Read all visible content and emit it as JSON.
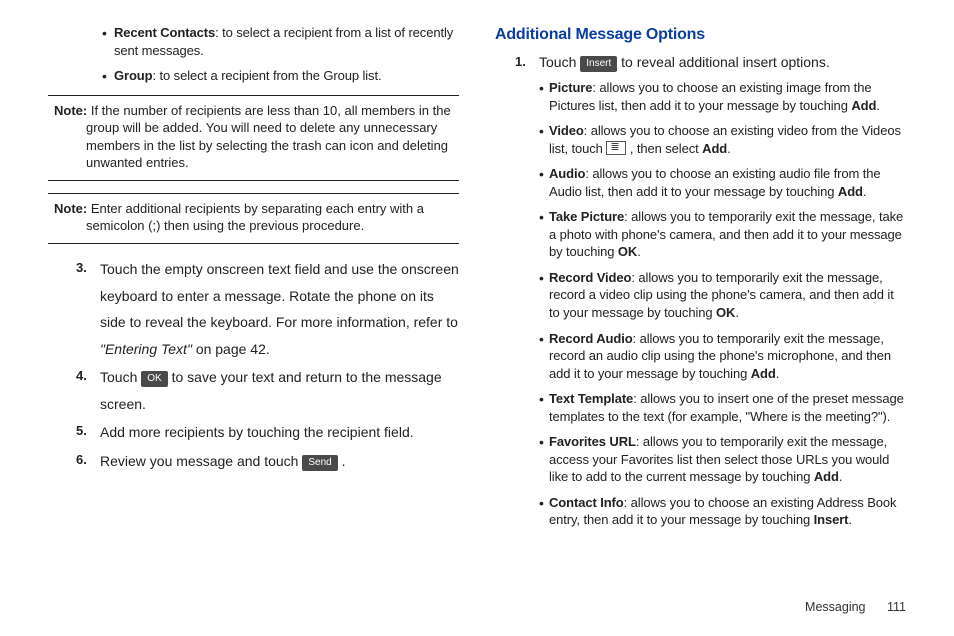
{
  "left": {
    "bullets": [
      {
        "label": "Recent Contacts",
        "text": ": to select a recipient from a list of recently sent messages."
      },
      {
        "label": "Group",
        "text": ": to select a recipient from the Group list."
      }
    ],
    "notes": [
      {
        "prefix": "Note:",
        "text": "If the number of recipients are less than 10, all members in the group will be added. You will need to delete any unnecessary members in the list by selecting the trash can icon and deleting unwanted entries."
      },
      {
        "prefix": "Note:",
        "text": "Enter additional recipients by separating each entry with a semicolon (;) then using the previous procedure."
      }
    ],
    "steps": {
      "s3": {
        "num": "3.",
        "text_a": "Touch the empty onscreen text field and use the onscreen keyboard to enter a message. Rotate the phone on its side to reveal the keyboard. For more information, refer to ",
        "ref": "\"Entering Text\"",
        "text_b": "  on page 42."
      },
      "s4": {
        "num": "4.",
        "pre": "Touch ",
        "btn": "OK",
        "post": " to save your text and return to the message screen."
      },
      "s5": {
        "num": "5.",
        "text": "Add more recipients by touching the recipient field."
      },
      "s6": {
        "num": "6.",
        "pre": "Review you message and touch ",
        "btn": "Send",
        "post": " ."
      }
    }
  },
  "right": {
    "heading": "Additional Message Options",
    "step1": {
      "num": "1.",
      "pre": "Touch ",
      "btn": "Insert",
      "post": " to reveal additional insert options."
    },
    "items": [
      {
        "label": "Picture",
        "t1": ": allows you to choose an existing image from the Pictures list, then add it to your message by touching ",
        "e1": "Add",
        "t2": "."
      },
      {
        "label": "Video",
        "t1": ": allows you to choose an existing video from the Videos list, touch ",
        "icon": true,
        "mid": " , then select ",
        "e1": "Add",
        "t2": "."
      },
      {
        "label": "Audio",
        "t1": ": allows you to choose an existing audio file from the Audio list, then add it to your message by touching ",
        "e1": "Add",
        "t2": "."
      },
      {
        "label": "Take Picture",
        "t1": ": allows you to temporarily exit the message, take a photo with phone's camera, and then add it to your message by touching ",
        "e1": "OK",
        "t2": "."
      },
      {
        "label": "Record Video",
        "t1": ": allows you to temporarily exit the message, record a video clip using the phone's camera, and then add it to your message by touching ",
        "e1": "OK",
        "t2": "."
      },
      {
        "label": "Record Audio",
        "t1": ": allows you to temporarily exit the message, record an audio clip using the phone's microphone, and then add it to your message by touching ",
        "e1": "Add",
        "t2": "."
      },
      {
        "label": "Text Template",
        "t1": ": allows you to insert one of the preset message templates to the text (for example, \"Where is the meeting?\").",
        "e1": "",
        "t2": ""
      },
      {
        "label": "Favorites URL",
        "t1": ": allows you to temporarily exit the message, access your Favorites list then select those URLs you would like to add to the current message by touching ",
        "e1": "Add",
        "t2": "."
      },
      {
        "label": "Contact Info",
        "t1": ": allows you to choose an existing Address Book entry, then add it to your message by touching ",
        "e1": "Insert",
        "t2": "."
      }
    ]
  },
  "footer": {
    "section": "Messaging",
    "page": "111"
  },
  "colors": {
    "heading": "#0b3ea0",
    "btn_bg": "#4a4a4a",
    "text": "#222222",
    "rule": "#222222"
  }
}
